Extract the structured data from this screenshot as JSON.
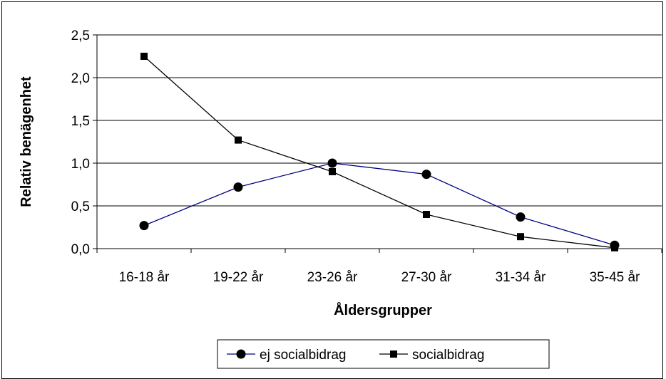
{
  "chart_data": {
    "type": "line",
    "title": "",
    "xlabel": "Åldersgrupper",
    "ylabel": "Relativ benägenhet",
    "categories": [
      "16-18 år",
      "19-22 år",
      "23-26 år",
      "27-30 år",
      "31-34 år",
      "35-45 år"
    ],
    "ylim": [
      0,
      2.5
    ],
    "yticks": [
      "0,0",
      "0,5",
      "1,0",
      "1,5",
      "2,0",
      "2,5"
    ],
    "grid": true,
    "legend_position": "bottom",
    "series": [
      {
        "name": "ej socialbidrag",
        "values": [
          0.27,
          0.72,
          1.0,
          0.87,
          0.37,
          0.04
        ],
        "color": "#000080",
        "marker": "circle"
      },
      {
        "name": "socialbidrag",
        "values": [
          2.25,
          1.27,
          0.9,
          0.4,
          0.14,
          0.01
        ],
        "color": "#000000",
        "marker": "square"
      }
    ]
  }
}
